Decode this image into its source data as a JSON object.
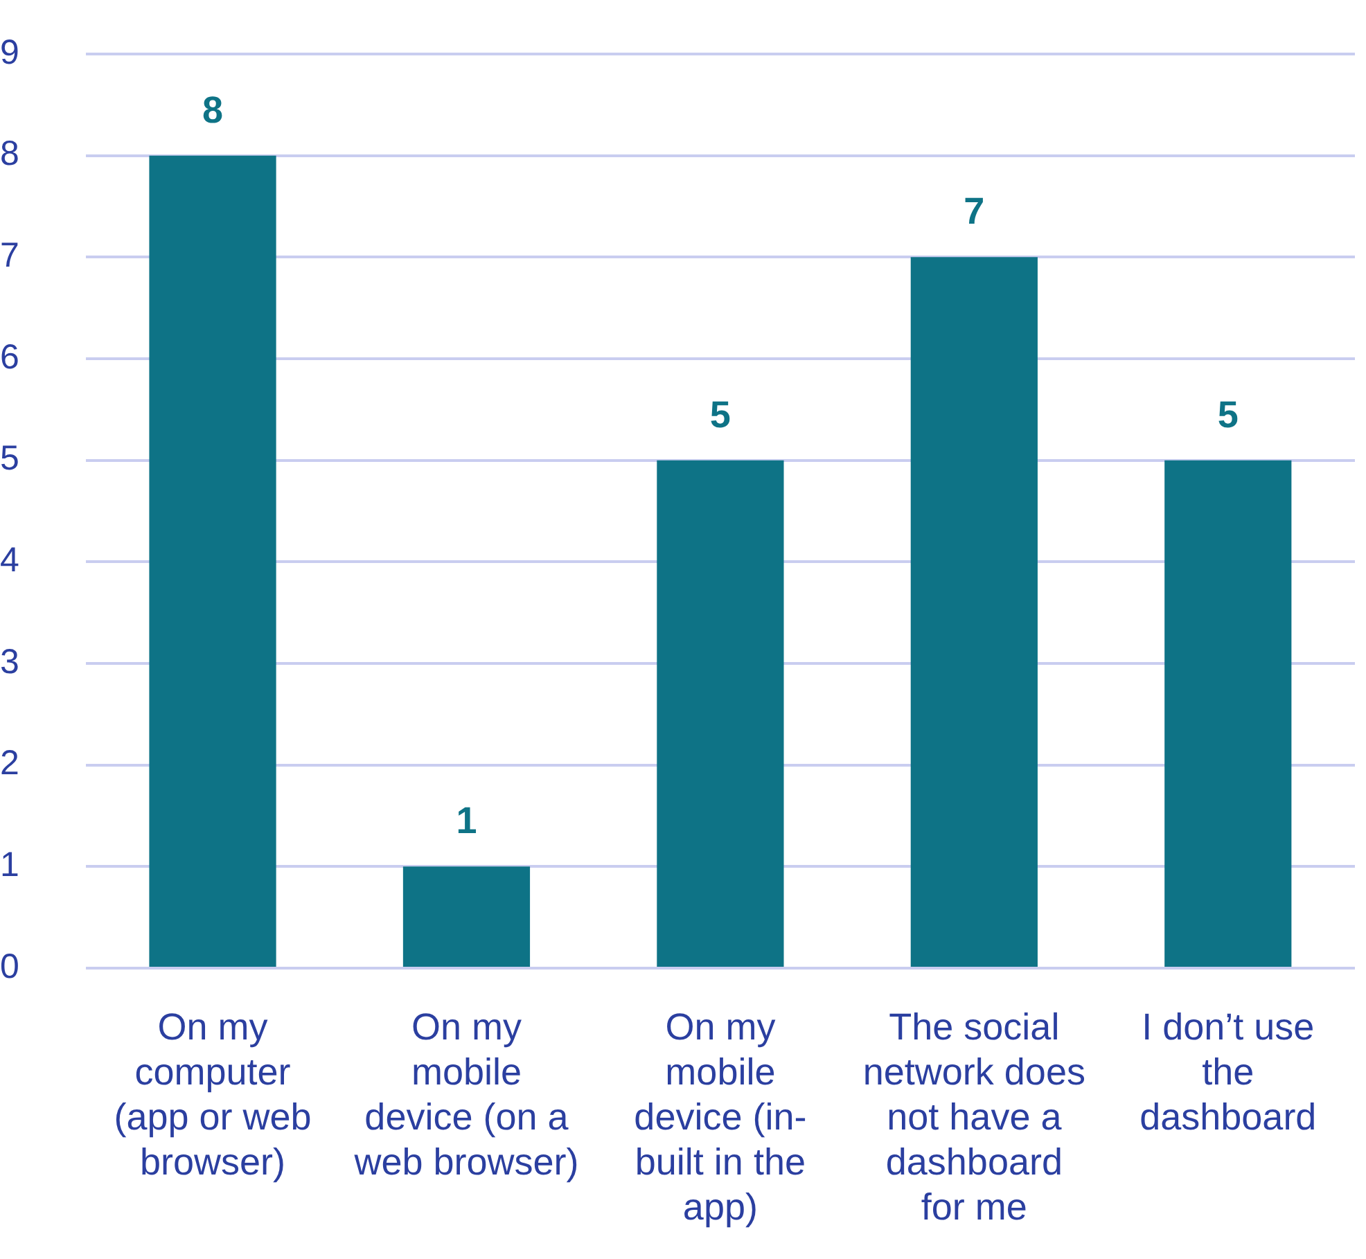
{
  "chart_data": {
    "type": "bar",
    "categories": [
      "On my computer (app or web browser)",
      "On my mobile device (on a web browser)",
      "On my mobile device (in-built in the app)",
      "The social network does not have a dashboard for me",
      "I don’t use the dashboard"
    ],
    "values": [
      8,
      1,
      5,
      7,
      5
    ],
    "color": "#0e7386",
    "ylim": [
      0,
      9
    ],
    "yticks": [
      0,
      1,
      2,
      3,
      4,
      5,
      6,
      7,
      8,
      9
    ],
    "grid": "y",
    "data_labels": true
  }
}
